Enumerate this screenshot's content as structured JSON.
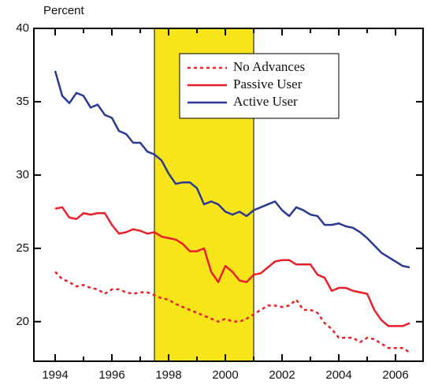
{
  "chart_data": {
    "type": "line",
    "y_label": "Percent",
    "x": [
      1994,
      1994.25,
      1994.5,
      1994.75,
      1995,
      1995.25,
      1995.5,
      1995.75,
      1996,
      1996.25,
      1996.5,
      1996.75,
      1997,
      1997.25,
      1997.5,
      1997.75,
      1998,
      1998.25,
      1998.5,
      1998.75,
      1999,
      1999.25,
      1999.5,
      1999.75,
      2000,
      2000.25,
      2000.5,
      2000.75,
      2001,
      2001.25,
      2001.5,
      2001.75,
      2002,
      2002.25,
      2002.5,
      2002.75,
      2003,
      2003.25,
      2003.5,
      2003.75,
      2004,
      2004.25,
      2004.5,
      2004.75,
      2005,
      2005.25,
      2005.5,
      2005.75,
      2006,
      2006.25,
      2006.5
    ],
    "series": [
      {
        "name": "No Advances",
        "color": "#e8202a",
        "style": "dashed",
        "values": [
          23.4,
          22.9,
          22.7,
          22.4,
          22.5,
          22.3,
          22.2,
          21.9,
          22.2,
          22.2,
          22.0,
          21.9,
          22.0,
          22.0,
          21.8,
          21.6,
          21.5,
          21.2,
          21.0,
          20.8,
          20.6,
          20.4,
          20.2,
          20.0,
          20.2,
          20.0,
          20.0,
          20.2,
          20.5,
          20.8,
          21.1,
          21.1,
          21.0,
          21.1,
          21.5,
          20.8,
          20.8,
          20.6,
          19.9,
          19.5,
          18.9,
          18.9,
          18.9,
          18.6,
          18.9,
          18.8,
          18.5,
          18.2,
          18.2,
          18.2,
          17.9
        ]
      },
      {
        "name": "Passive User",
        "color": "#e8202a",
        "style": "solid",
        "values": [
          27.7,
          27.8,
          27.1,
          27.0,
          27.4,
          27.3,
          27.4,
          27.4,
          26.6,
          26.0,
          26.1,
          26.3,
          26.2,
          26.0,
          26.1,
          25.8,
          25.7,
          25.6,
          25.3,
          24.8,
          24.8,
          25.0,
          23.4,
          22.7,
          23.8,
          23.4,
          22.8,
          22.7,
          23.2,
          23.3,
          23.7,
          24.1,
          24.2,
          24.2,
          23.9,
          23.9,
          23.9,
          23.2,
          23.0,
          22.1,
          22.3,
          22.3,
          22.1,
          22.0,
          21.9,
          20.8,
          20.1,
          19.7,
          19.7,
          19.7,
          19.9
        ]
      },
      {
        "name": "Active User",
        "color": "#2b3990",
        "style": "solid",
        "values": [
          37.1,
          35.4,
          34.9,
          35.6,
          35.4,
          34.6,
          34.8,
          34.1,
          33.9,
          33.0,
          32.8,
          32.2,
          32.2,
          31.6,
          31.4,
          31.0,
          30.1,
          29.4,
          29.5,
          29.5,
          29.1,
          28.0,
          28.2,
          28.0,
          27.5,
          27.3,
          27.5,
          27.2,
          27.6,
          27.8,
          28.0,
          28.2,
          27.6,
          27.2,
          27.8,
          27.6,
          27.3,
          27.2,
          26.6,
          26.6,
          26.7,
          26.5,
          26.4,
          26.1,
          25.7,
          25.2,
          24.7,
          24.4,
          24.1,
          23.8,
          23.7
        ]
      }
    ],
    "shade": [
      1997.5,
      2001
    ],
    "shade_color": "#f7e51a",
    "xlim": [
      1993.25,
      2006.97
    ],
    "ylim": [
      17.3,
      40
    ],
    "xticks": [
      1994,
      1996,
      1998,
      2000,
      2002,
      2004,
      2006
    ],
    "xminorticks": [
      1995,
      1997,
      1999,
      2001,
      2003,
      2005
    ],
    "yticks": [
      20,
      25,
      30,
      35,
      40
    ]
  }
}
